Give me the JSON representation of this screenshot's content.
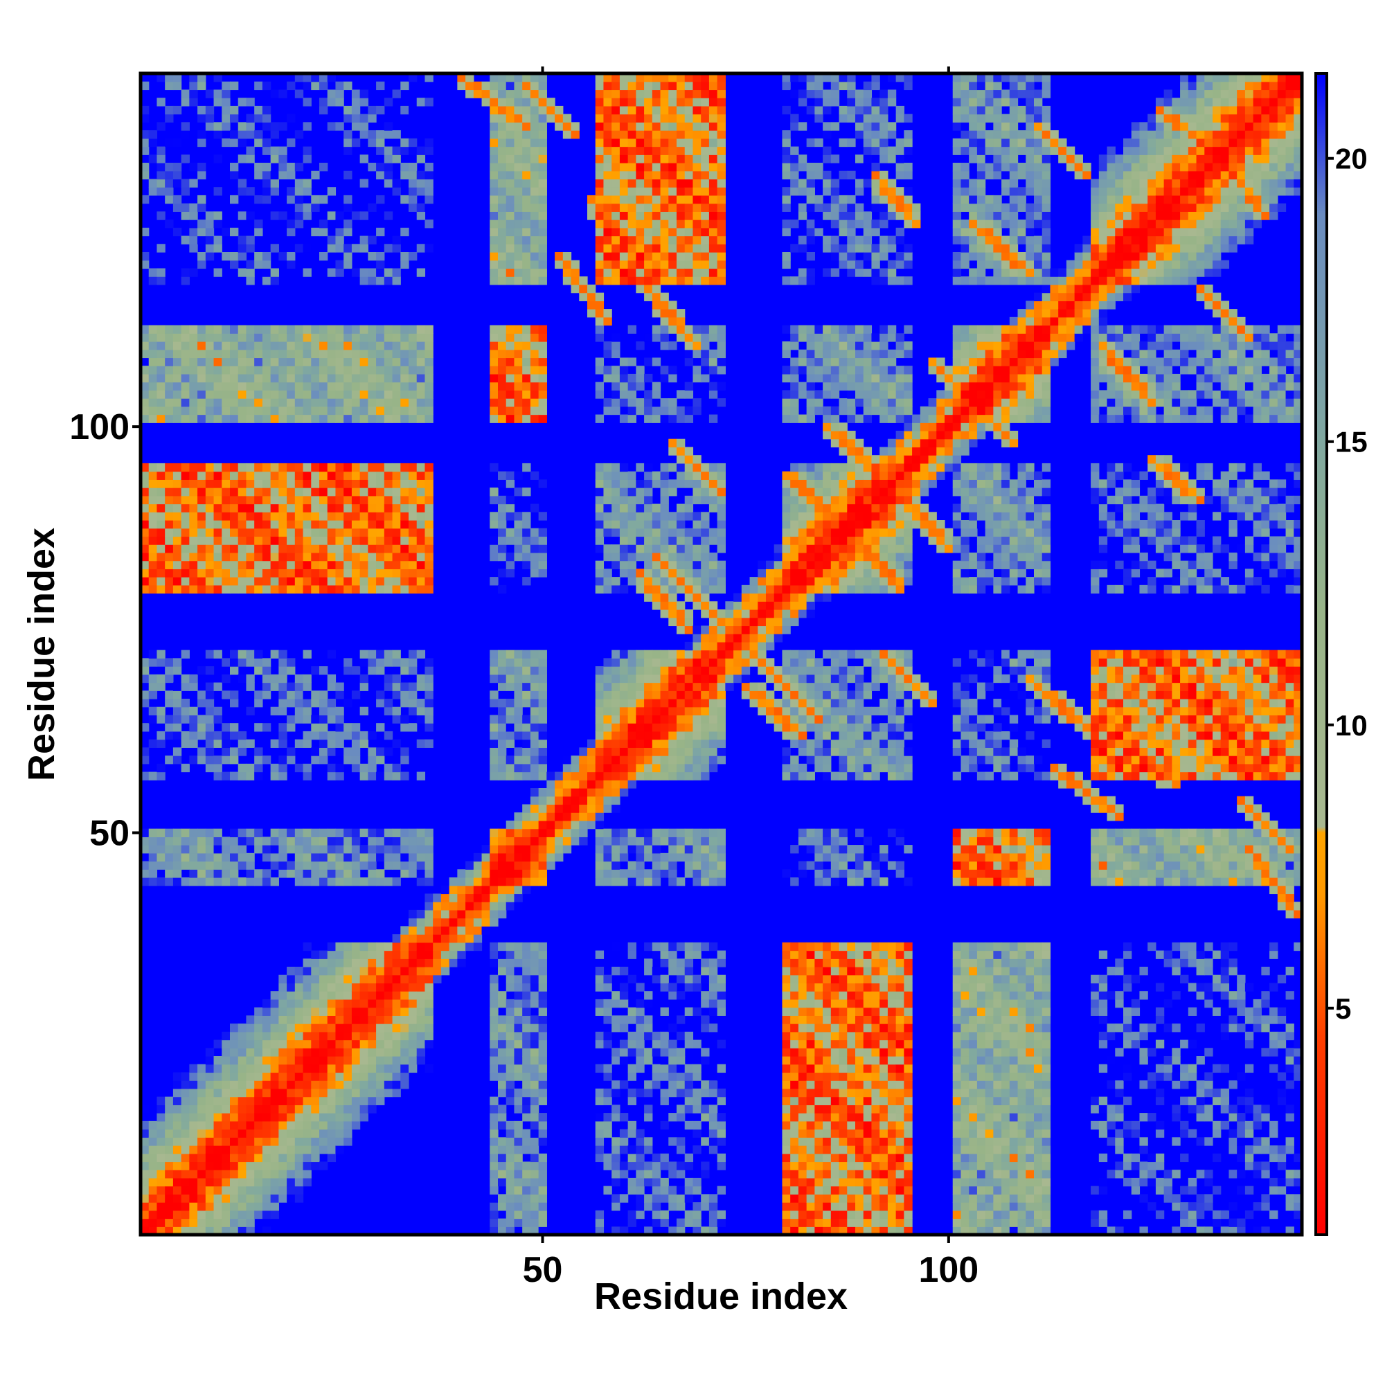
{
  "chart_data": {
    "type": "heatmap",
    "title": "",
    "xlabel": "Residue index",
    "ylabel": "Residue index",
    "n_residues": 143,
    "xlim": [
      1,
      143
    ],
    "ylim": [
      1,
      143
    ],
    "x_ticks": [
      50,
      100
    ],
    "y_ticks": [
      50,
      100
    ],
    "colorbar": {
      "range": [
        1,
        21.5
      ],
      "ticks": [
        5,
        10,
        15,
        20
      ],
      "stops": [
        {
          "value": 1,
          "color": "#ff0000"
        },
        {
          "value": 4.5,
          "color": "#ff4000"
        },
        {
          "value": 7,
          "color": "#ff9900"
        },
        {
          "value": 8.1,
          "color": "#ffa500"
        },
        {
          "value": 8.2,
          "color": "#a8b890"
        },
        {
          "value": 12,
          "color": "#98b488"
        },
        {
          "value": 15,
          "color": "#80a8a0"
        },
        {
          "value": 19,
          "color": "#6a8cc0"
        },
        {
          "value": 21.5,
          "color": "#0000ff"
        }
      ],
      "cap_color": "#0000ff"
    },
    "background_color": "#0000ff",
    "diagonal_color": "#ff0000",
    "contact_color": "#ff9900",
    "helix_segments": [
      [
        1,
        36
      ],
      [
        44,
        50
      ],
      [
        57,
        72
      ],
      [
        80,
        95
      ],
      [
        101,
        112
      ],
      [
        118,
        143
      ]
    ],
    "sheet_contacts": [
      {
        "a": [
          48,
          54
        ],
        "b": [
          136,
          142
        ],
        "direction": "anti"
      },
      {
        "a": [
          52,
          58
        ],
        "b": [
          113,
          121
        ],
        "direction": "anti"
      },
      {
        "a": [
          62,
          69
        ],
        "b": [
          110,
          118
        ],
        "direction": "anti"
      },
      {
        "a": [
          64,
          72
        ],
        "b": [
          76,
          84
        ],
        "direction": "anti"
      },
      {
        "a": [
          66,
          72
        ],
        "b": [
          92,
          98
        ],
        "direction": "anti"
      },
      {
        "a": [
          75,
          82
        ],
        "b": [
          62,
          68
        ],
        "direction": "anti"
      },
      {
        "a": [
          80,
          85
        ],
        "b": [
          90,
          94
        ],
        "direction": "anti"
      },
      {
        "a": [
          85,
          92
        ],
        "b": [
          94,
          100
        ],
        "direction": "anti"
      },
      {
        "a": [
          98,
          104
        ],
        "b": [
          102,
          108
        ],
        "direction": "anti"
      },
      {
        "a": [
          103,
          110
        ],
        "b": [
          119,
          125
        ],
        "direction": "anti"
      },
      {
        "a": [
          121,
          128
        ],
        "b": [
          56,
          62
        ],
        "direction": "anti"
      },
      {
        "a": [
          125,
          131
        ],
        "b": [
          91,
          96
        ],
        "direction": "anti"
      },
      {
        "a": [
          131,
          137
        ],
        "b": [
          61,
          69
        ],
        "direction": "anti"
      },
      {
        "a": [
          133,
          139
        ],
        "b": [
          126,
          134
        ],
        "direction": "anti"
      },
      {
        "a": [
          137,
          143
        ],
        "b": [
          40,
          48
        ],
        "direction": "anti"
      },
      {
        "a": [
          131,
          137
        ],
        "b": [
          111,
          117
        ],
        "direction": "anti"
      }
    ]
  }
}
